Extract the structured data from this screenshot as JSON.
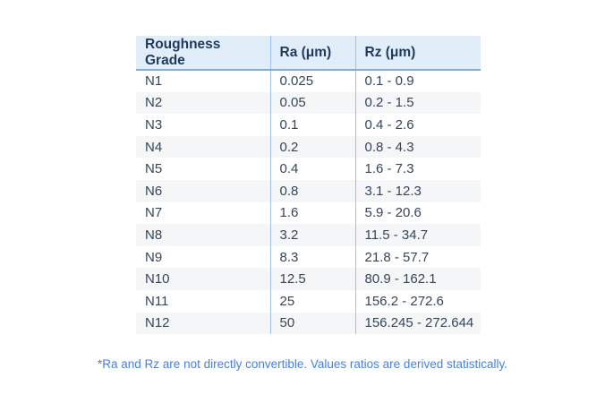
{
  "chart_data": {
    "type": "table",
    "columns": [
      "Roughness Grade",
      "Ra (μm)",
      "Rz (μm)"
    ],
    "rows": [
      {
        "grade": "N1",
        "ra": "0.025",
        "rz": "0.1 - 0.9"
      },
      {
        "grade": "N2",
        "ra": "0.05",
        "rz": "0.2 - 1.5"
      },
      {
        "grade": "N3",
        "ra": "0.1",
        "rz": "0.4 - 2.6"
      },
      {
        "grade": "N4",
        "ra": "0.2",
        "rz": "0.8 - 4.3"
      },
      {
        "grade": "N5",
        "ra": "0.4",
        "rz": "1.6 - 7.3"
      },
      {
        "grade": "N6",
        "ra": "0.8",
        "rz": "3.1 - 12.3"
      },
      {
        "grade": "N7",
        "ra": "1.6",
        "rz": "5.9 - 20.6"
      },
      {
        "grade": "N8",
        "ra": "3.2",
        "rz": "11.5 - 34.7"
      },
      {
        "grade": "N9",
        "ra": "8.3",
        "rz": "21.8 - 57.7"
      },
      {
        "grade": "N10",
        "ra": "12.5",
        "rz": "80.9 - 162.1"
      },
      {
        "grade": "N11",
        "ra": "25",
        "rz": "156.2 - 272.6"
      },
      {
        "grade": "N12",
        "ra": "50",
        "rz": "156.245 - 272.644"
      }
    ],
    "annotations": [
      "*Ra and Rz are not directly convertible. Values ratios are derived statistically."
    ]
  },
  "colors": {
    "page_bg": "#ffffff",
    "header_bg": "#e2edfa",
    "header_text": "#1e3a5f",
    "header_border": "#86aad6",
    "column_divider": "#9fc0ea",
    "row_stripe": "#f4f6f8",
    "body_text": "#36455a",
    "footnote_text": "#4a80d9"
  }
}
